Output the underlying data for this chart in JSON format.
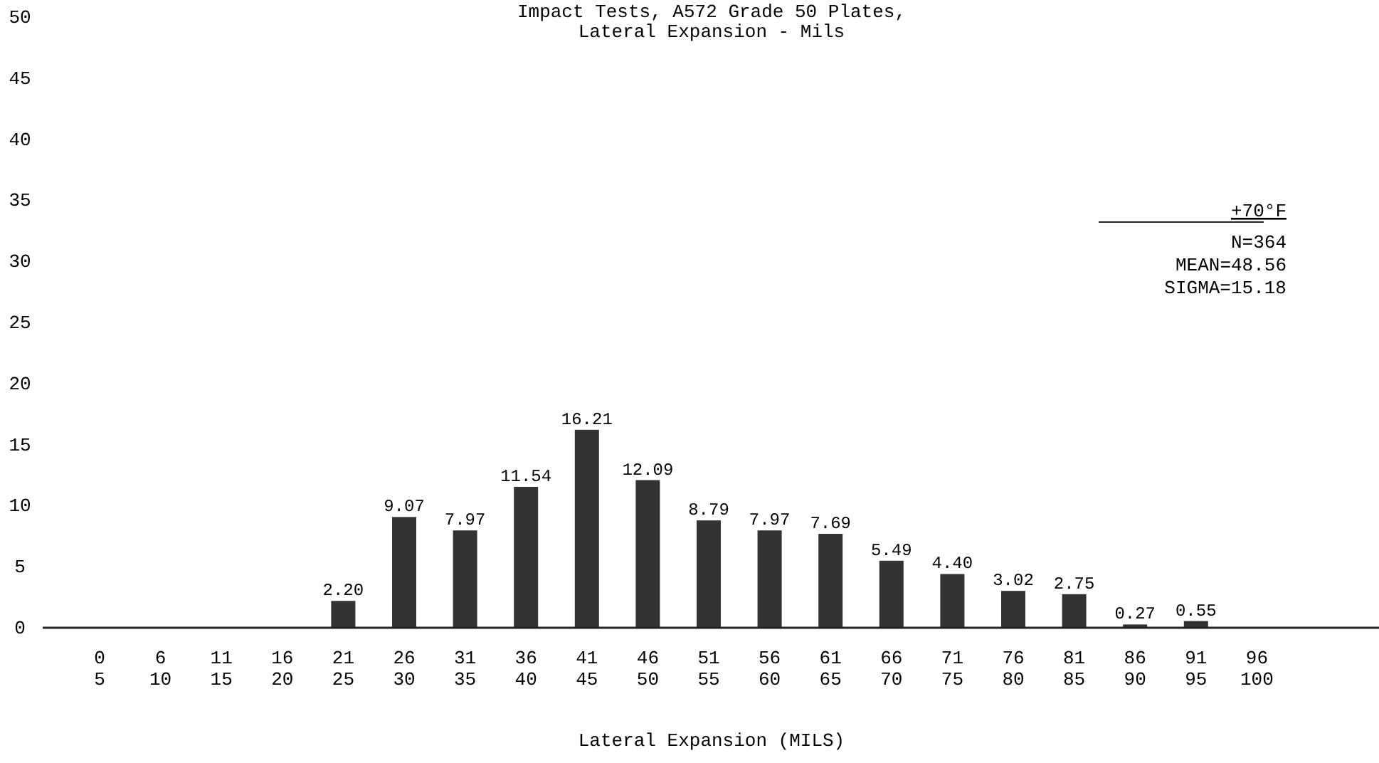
{
  "chart_data": {
    "type": "bar",
    "title": "Impact Tests, A572 Grade 50 Plates,\nLateral Expansion - Mils",
    "xlabel": "Lateral Expansion (MILS)",
    "categories": [
      "0\n5",
      "6\n10",
      "11\n15",
      "16\n20",
      "21\n25",
      "26\n30",
      "31\n35",
      "36\n40",
      "41\n45",
      "46\n50",
      "51\n55",
      "56\n60",
      "61\n65",
      "66\n70",
      "71\n75",
      "76\n80",
      "81\n85",
      "86\n90",
      "91\n95",
      "96\n100"
    ],
    "values": [
      0,
      0,
      0,
      0,
      2.2,
      9.07,
      7.97,
      11.54,
      16.21,
      12.09,
      8.79,
      7.97,
      7.69,
      5.49,
      4.4,
      3.02,
      2.75,
      0.27,
      0.55,
      0
    ],
    "value_labels": [
      null,
      null,
      null,
      null,
      "2.20",
      "9.07",
      "7.97",
      "11.54",
      "16.21",
      "12.09",
      "8.79",
      "7.97",
      "7.69",
      "5.49",
      "4.40",
      "3.02",
      "2.75",
      "0.27",
      "0.55",
      null
    ],
    "color": "#333333",
    "ylim": [
      0,
      50
    ],
    "yticks": [
      0,
      5,
      10,
      15,
      20,
      25,
      30,
      35,
      40,
      45,
      50
    ],
    "grid": false,
    "annotations": [
      "+70°F",
      "N=364",
      "MEAN=48.56",
      "SIGMA=15.18"
    ]
  }
}
